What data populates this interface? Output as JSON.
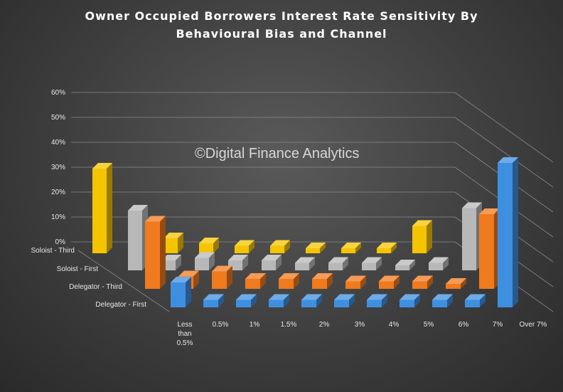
{
  "chart_data": {
    "type": "bar3d",
    "title_lines": [
      "Owner Occupied Borrowers Interest Rate Sensitivity By",
      "Behavioural Bias and Channel"
    ],
    "watermark": "©Digital Finance Analytics",
    "categories": [
      "Less than 0.5%",
      "0.5%",
      "1%",
      "1.5%",
      "2%",
      "3%",
      "4%",
      "5%",
      "6%",
      "7%",
      "Over 7%"
    ],
    "y_ticks": [
      "0%",
      "10%",
      "20%",
      "30%",
      "40%",
      "50%",
      "60%"
    ],
    "ylim": [
      0,
      60
    ],
    "series": [
      {
        "name": "Soloist - Third",
        "color": "#f5c400",
        "values": [
          34,
          5,
          6,
          4,
          3,
          3,
          2,
          2,
          2,
          11,
          0
        ]
      },
      {
        "name": "Soloist - First",
        "color": "#b8b8b8",
        "values": [
          24,
          4,
          5,
          4,
          4,
          3,
          3,
          3,
          2,
          3,
          25
        ]
      },
      {
        "name": "Delegator - Third",
        "color": "#f07a1e",
        "values": [
          27,
          5,
          7,
          4,
          4,
          4,
          3,
          3,
          3,
          2,
          30
        ]
      },
      {
        "name": "Delegator - First",
        "color": "#3f8fe0",
        "values": [
          10,
          3,
          3,
          3,
          3,
          3,
          3,
          3,
          3,
          3,
          58
        ]
      }
    ]
  }
}
